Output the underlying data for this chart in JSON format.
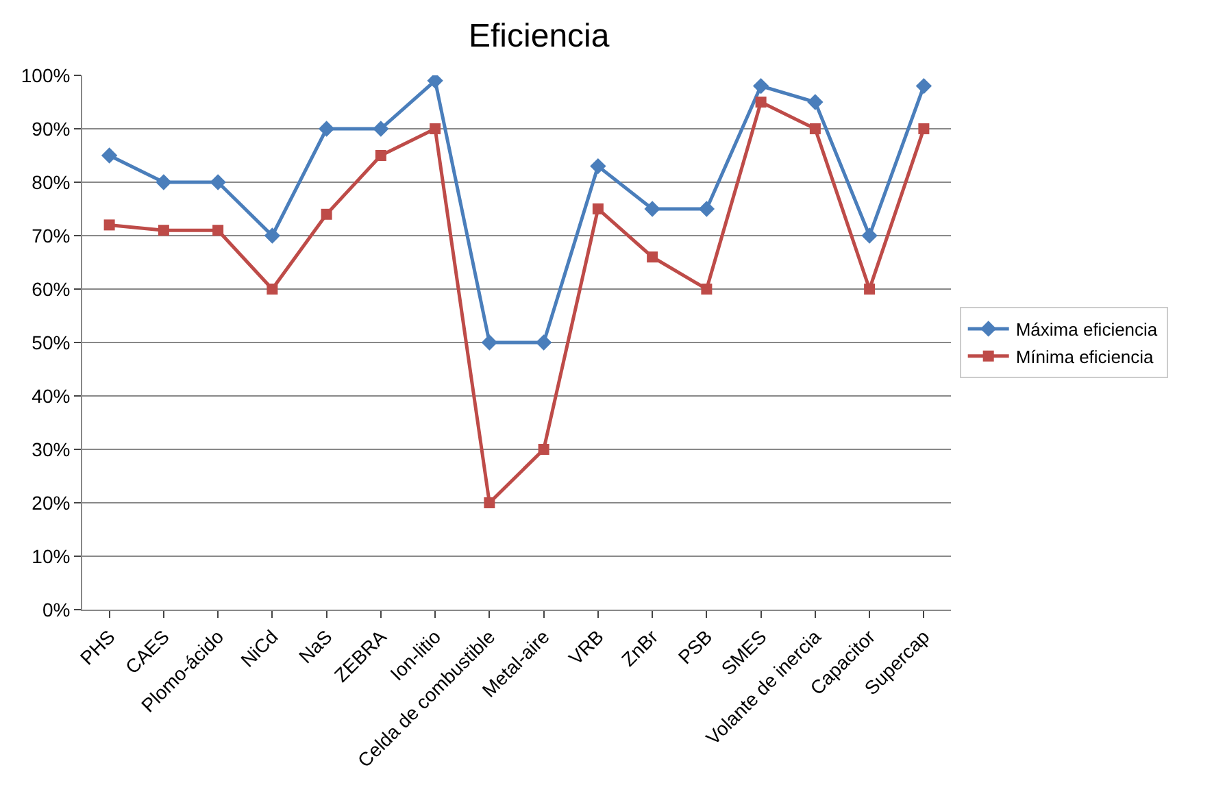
{
  "chart_data": {
    "type": "line",
    "title": "Eficiencia",
    "categories": [
      "PHS",
      "CAES",
      "Plomo-ácido",
      "NiCd",
      "NaS",
      "ZEBRA",
      "Ion-litio",
      "Celda de combustible",
      "Metal-aire",
      "VRB",
      "ZnBr",
      "PSB",
      "SMES",
      "Volante de inercia",
      "Capacitor",
      "Supercap"
    ],
    "series": [
      {
        "name": "Máxima eficiencia",
        "color": "#4a7ebb",
        "marker": "diamond",
        "values": [
          85,
          80,
          80,
          70,
          90,
          90,
          99,
          50,
          50,
          83,
          75,
          75,
          98,
          95,
          70,
          98
        ]
      },
      {
        "name": "Mínima eficiencia",
        "color": "#be4b48",
        "marker": "square",
        "values": [
          72,
          71,
          71,
          60,
          74,
          85,
          90,
          20,
          30,
          75,
          66,
          60,
          95,
          90,
          60,
          90
        ]
      }
    ],
    "ylim": [
      0,
      100
    ],
    "yticks": [
      {
        "value": 0,
        "label": "0%"
      },
      {
        "value": 10,
        "label": "10%"
      },
      {
        "value": 20,
        "label": "20%"
      },
      {
        "value": 30,
        "label": "30%"
      },
      {
        "value": 40,
        "label": "40%"
      },
      {
        "value": 50,
        "label": "50%"
      },
      {
        "value": 60,
        "label": "60%"
      },
      {
        "value": 70,
        "label": "70%"
      },
      {
        "value": 80,
        "label": "80%"
      },
      {
        "value": 90,
        "label": "90%"
      },
      {
        "value": 100,
        "label": "100%"
      }
    ],
    "grid": "y",
    "legend": "right",
    "line_style": "solid"
  }
}
